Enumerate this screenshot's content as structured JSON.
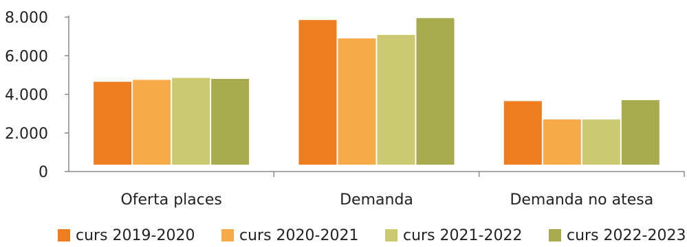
{
  "chart_data": {
    "type": "bar",
    "categories": [
      "Oferta places",
      "Demanda",
      "Demanda no atesa"
    ],
    "series": [
      {
        "name": "curs 2019-2020",
        "color": "#EE7D1F",
        "values": [
          4650,
          7850,
          3650
        ]
      },
      {
        "name": "curs 2020-2021",
        "color": "#F6AA4A",
        "values": [
          4750,
          6900,
          2700
        ]
      },
      {
        "name": "curs 2021-2022",
        "color": "#CCC973",
        "values": [
          4850,
          7080,
          2700
        ]
      },
      {
        "name": "curs 2022-2023",
        "color": "#A7AA4D",
        "values": [
          4800,
          7950,
          3700
        ]
      }
    ],
    "ylim": [
      0,
      8000
    ],
    "yticks": [
      0,
      2000,
      4000,
      6000,
      8000
    ],
    "ytick_labels": [
      "0",
      "2.000",
      "4.000",
      "6.000",
      "8.000"
    ],
    "title": "",
    "xlabel": "",
    "ylabel": "",
    "grid": false,
    "legend_position": "bottom"
  }
}
